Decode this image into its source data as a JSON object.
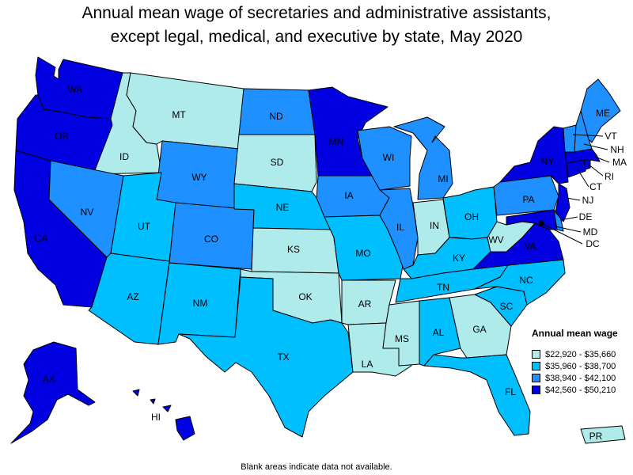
{
  "title_line1": "Annual mean wage of secretaries and administrative assistants,",
  "title_line2": "except legal, medical, and executive by state, May 2020",
  "legend": {
    "title": "Annual mean wage",
    "items": [
      {
        "label": "$22,920 - $35,660",
        "color": "#B0EBEB"
      },
      {
        "label": "$35,960 - $38,700",
        "color": "#00BFFF"
      },
      {
        "label": "$38,940 - $42,100",
        "color": "#1E90FF"
      },
      {
        "label": "$42,560 - $50,210",
        "color": "#0000E0"
      }
    ]
  },
  "states": {
    "WA": "WA",
    "OR": "OR",
    "CA": "CA",
    "ID": "ID",
    "NV": "NV",
    "MT": "MT",
    "WY": "WY",
    "UT": "UT",
    "AZ": "AZ",
    "CO": "CO",
    "NM": "NM",
    "ND": "ND",
    "SD": "SD",
    "NE": "NE",
    "KS": "KS",
    "OK": "OK",
    "TX": "TX",
    "MN": "MN",
    "IA": "IA",
    "MO": "MO",
    "AR": "AR",
    "LA": "LA",
    "WI": "WI",
    "IL": "IL",
    "MI": "MI",
    "IN": "IN",
    "OH": "OH",
    "KY": "KY",
    "TN": "TN",
    "MS": "MS",
    "AL": "AL",
    "GA": "GA",
    "FL": "FL",
    "SC": "SC",
    "NC": "NC",
    "VA": "VA",
    "WV": "WV",
    "PA": "PA",
    "NY": "NY",
    "ME": "ME",
    "VT": "VT",
    "NH": "NH",
    "MA": "MA",
    "RI": "RI",
    "CT": "CT",
    "NJ": "NJ",
    "DE": "DE",
    "MD": "MD",
    "DC": "DC",
    "AK": "AK",
    "HI": "HI",
    "PR": "PR"
  },
  "footnote": "Blank areas indicate data not available."
}
